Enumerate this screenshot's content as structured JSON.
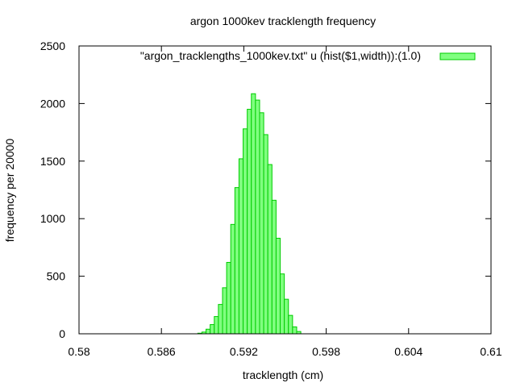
{
  "chart_data": {
    "type": "bar",
    "title": "argon 1000kev tracklength frequency",
    "xlabel": "tracklength (cm)",
    "ylabel": "frequency per 20000",
    "xlim": [
      0.58,
      0.61
    ],
    "ylim": [
      0,
      2500
    ],
    "xticks": [
      "0.58",
      "0.586",
      "0.592",
      "0.598",
      "0.604",
      "0.61"
    ],
    "yticks": [
      "0",
      "500",
      "1000",
      "1500",
      "2000",
      "2500"
    ],
    "xtick_values": [
      0.58,
      0.586,
      0.592,
      0.598,
      0.604,
      0.61
    ],
    "ytick_values": [
      0,
      500,
      1000,
      1500,
      2000,
      2500
    ],
    "grid": false,
    "legend_position": "top-right",
    "bar_width": 0.0003,
    "colors": {
      "fill": "#80ff80",
      "stroke": "#00cc00"
    },
    "series": [
      {
        "name": "\"argon_tracklengths_1000kev.txt\" u (hist($1,width)):(1.0)",
        "x": [
          0.5888,
          0.5891,
          0.5894,
          0.5897,
          0.59,
          0.5903,
          0.5906,
          0.5909,
          0.5912,
          0.5915,
          0.5918,
          0.5921,
          0.5924,
          0.5927,
          0.593,
          0.5933,
          0.5936,
          0.5939,
          0.5942,
          0.5945,
          0.5948,
          0.5951,
          0.5954,
          0.5957,
          0.596
        ],
        "values": [
          5,
          15,
          40,
          80,
          150,
          255,
          400,
          620,
          950,
          1270,
          1520,
          1780,
          1950,
          2085,
          2030,
          1920,
          1730,
          1470,
          1160,
          830,
          520,
          300,
          160,
          60,
          20
        ]
      }
    ]
  }
}
